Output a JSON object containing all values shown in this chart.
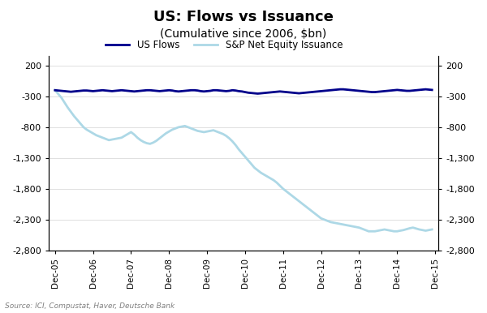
{
  "title": "US: Flows vs Issuance",
  "subtitle": "(Cumulative since 2006, $bn)",
  "source": "Source: ICI, Compustat, Haver, Deutsche Bank",
  "us_flows_color": "#00008B",
  "issuance_color": "#ADD8E6",
  "background_color": "#FFFFFF",
  "ylim": [
    -2800,
    350
  ],
  "yticks": [
    200,
    -300,
    -800,
    -1300,
    -1800,
    -2300,
    -2800
  ],
  "xtick_labels": [
    "Dec-05",
    "Dec-06",
    "Dec-07",
    "Dec-08",
    "Dec-09",
    "Dec-10",
    "Dec-11",
    "Dec-12",
    "Dec-13",
    "Dec-14",
    "Dec-15"
  ],
  "us_flows": {
    "x": [
      0,
      1,
      2,
      3,
      4,
      5,
      6,
      7,
      8,
      9,
      10,
      11,
      12,
      13,
      14,
      15,
      16,
      17,
      18,
      19,
      20,
      21,
      22,
      23,
      24,
      25,
      26,
      27,
      28,
      29,
      30,
      31,
      32,
      33,
      34,
      35,
      36,
      37,
      38,
      39,
      40,
      41,
      42,
      43,
      44,
      45,
      46,
      47,
      48,
      49,
      50,
      51,
      52,
      53,
      54,
      55,
      56,
      57,
      58,
      59,
      60,
      61,
      62,
      63,
      64,
      65,
      66,
      67,
      68,
      69,
      70,
      71,
      72,
      73,
      74,
      75,
      76,
      77,
      78,
      79,
      80,
      81,
      82,
      83,
      84,
      85,
      86,
      87,
      88,
      89,
      90,
      91,
      92,
      93,
      94,
      95,
      96,
      97,
      98,
      99,
      100,
      101,
      102,
      103,
      104,
      105,
      106,
      107,
      108,
      109,
      110,
      111,
      112,
      113,
      114,
      115,
      116,
      117,
      118,
      119
    ],
    "y": [
      -200,
      -205,
      -210,
      -215,
      -220,
      -225,
      -220,
      -215,
      -210,
      -205,
      -205,
      -210,
      -215,
      -210,
      -205,
      -200,
      -205,
      -210,
      -215,
      -210,
      -205,
      -200,
      -205,
      -210,
      -215,
      -220,
      -215,
      -210,
      -205,
      -200,
      -200,
      -205,
      -210,
      -215,
      -210,
      -205,
      -200,
      -205,
      -215,
      -220,
      -215,
      -210,
      -205,
      -200,
      -200,
      -205,
      -215,
      -220,
      -215,
      -210,
      -200,
      -200,
      -205,
      -210,
      -215,
      -210,
      -200,
      -205,
      -215,
      -220,
      -230,
      -240,
      -245,
      -250,
      -255,
      -250,
      -245,
      -240,
      -235,
      -230,
      -225,
      -220,
      -225,
      -230,
      -235,
      -240,
      -245,
      -250,
      -245,
      -240,
      -235,
      -230,
      -225,
      -220,
      -215,
      -210,
      -205,
      -200,
      -195,
      -190,
      -185,
      -185,
      -190,
      -195,
      -200,
      -205,
      -210,
      -215,
      -220,
      -225,
      -230,
      -230,
      -225,
      -220,
      -215,
      -210,
      -205,
      -200,
      -195,
      -200,
      -205,
      -210,
      -210,
      -205,
      -200,
      -195,
      -190,
      -185,
      -190,
      -195
    ]
  },
  "issuance": {
    "x": [
      0,
      1,
      2,
      3,
      4,
      5,
      6,
      7,
      8,
      9,
      10,
      11,
      12,
      13,
      14,
      15,
      16,
      17,
      18,
      19,
      20,
      21,
      22,
      23,
      24,
      25,
      26,
      27,
      28,
      29,
      30,
      31,
      32,
      33,
      34,
      35,
      36,
      37,
      38,
      39,
      40,
      41,
      42,
      43,
      44,
      45,
      46,
      47,
      48,
      49,
      50,
      51,
      52,
      53,
      54,
      55,
      56,
      57,
      58,
      59,
      60,
      61,
      62,
      63,
      64,
      65,
      66,
      67,
      68,
      69,
      70,
      71,
      72,
      73,
      74,
      75,
      76,
      77,
      78,
      79,
      80,
      81,
      82,
      83,
      84,
      85,
      86,
      87,
      88,
      89,
      90,
      91,
      92,
      93,
      94,
      95,
      96,
      97,
      98,
      99,
      100,
      101,
      102,
      103,
      104,
      105,
      106,
      107,
      108,
      109,
      110,
      111,
      112,
      113,
      114,
      115,
      116,
      117,
      118,
      119
    ],
    "y": [
      -200,
      -260,
      -320,
      -400,
      -480,
      -550,
      -620,
      -680,
      -740,
      -800,
      -840,
      -870,
      -900,
      -930,
      -950,
      -970,
      -990,
      -1010,
      -1000,
      -990,
      -980,
      -970,
      -940,
      -910,
      -880,
      -920,
      -970,
      -1010,
      -1040,
      -1060,
      -1070,
      -1050,
      -1020,
      -980,
      -940,
      -900,
      -870,
      -840,
      -820,
      -800,
      -790,
      -780,
      -800,
      -820,
      -840,
      -860,
      -870,
      -880,
      -870,
      -860,
      -850,
      -870,
      -890,
      -910,
      -940,
      -980,
      -1030,
      -1090,
      -1160,
      -1220,
      -1280,
      -1340,
      -1400,
      -1460,
      -1500,
      -1540,
      -1570,
      -1600,
      -1630,
      -1660,
      -1700,
      -1750,
      -1800,
      -1840,
      -1880,
      -1920,
      -1960,
      -2000,
      -2040,
      -2080,
      -2120,
      -2160,
      -2200,
      -2240,
      -2280,
      -2300,
      -2320,
      -2340,
      -2350,
      -2360,
      -2370,
      -2380,
      -2390,
      -2400,
      -2410,
      -2420,
      -2430,
      -2450,
      -2470,
      -2490,
      -2490,
      -2490,
      -2480,
      -2470,
      -2460,
      -2470,
      -2480,
      -2490,
      -2490,
      -2480,
      -2470,
      -2455,
      -2440,
      -2430,
      -2445,
      -2460,
      -2470,
      -2480,
      -2470,
      -2460
    ]
  }
}
